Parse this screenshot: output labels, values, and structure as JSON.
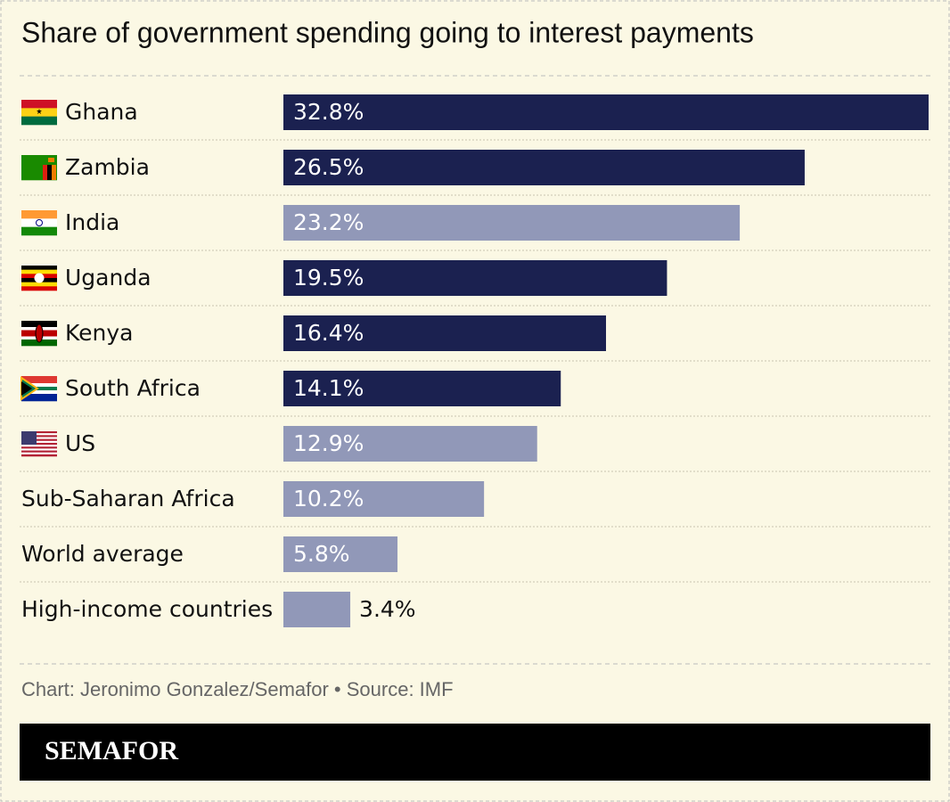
{
  "chart_data": {
    "type": "barh",
    "title": "Share of government spending going to interest payments",
    "categories": [
      "Ghana",
      "Zambia",
      "India",
      "Uganda",
      "Kenya",
      "South Africa",
      "US",
      "Sub-Saharan Africa",
      "World average",
      "High-income countries"
    ],
    "values": [
      32.8,
      26.5,
      23.2,
      19.5,
      16.4,
      14.1,
      12.9,
      10.2,
      5.8,
      3.4
    ],
    "value_labels": [
      "32.8%",
      "26.5%",
      "23.2%",
      "19.5%",
      "16.4%",
      "14.1%",
      "12.9%",
      "10.2%",
      "5.8%",
      "3.4%"
    ],
    "colors": [
      "#1b2150",
      "#1b2150",
      "#9198b8",
      "#1b2150",
      "#1b2150",
      "#1b2150",
      "#9198b8",
      "#9198b8",
      "#9198b8",
      "#9198b8"
    ],
    "credit": "Chart: Jeronimo Gonzalez/Semafor • Source: IMF",
    "logo": "SEMAFOR"
  }
}
